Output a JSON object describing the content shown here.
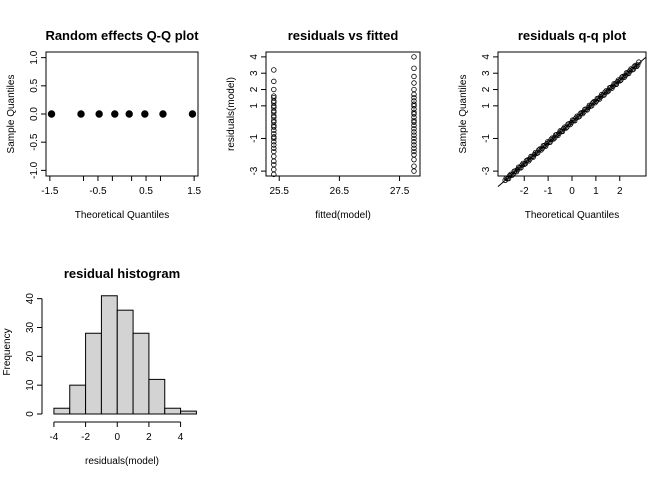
{
  "chart_data": [
    {
      "type": "scatter",
      "title": "Random effects Q-Q plot",
      "xlabel": "Theoretical Quantiles",
      "ylabel": "Sample Quantiles",
      "xlim": [
        -1.58,
        1.58
      ],
      "ylim": [
        -1.1,
        1.1
      ],
      "xticks": [
        -1.5,
        -0.5,
        0.5,
        1.5
      ],
      "xtick_labels": [
        "-1.5",
        "-0.5",
        "0.5",
        "1.5"
      ],
      "xticks_extra": [
        -0.8,
        -0.2,
        0.2,
        0.8
      ],
      "xtick_labels_extra": [
        "",
        "",
        "",
        ""
      ],
      "yticks": [
        -1.0,
        -0.5,
        0.0,
        0.5,
        1.0
      ],
      "ytick_labels": [
        "-1.0",
        "-0.5",
        "0.0",
        "0.5",
        "1.0"
      ],
      "x": [
        -1.465,
        -0.852,
        -0.475,
        -0.15,
        0.15,
        0.475,
        0.852,
        1.465
      ],
      "y": [
        0,
        0,
        0,
        0,
        0,
        0,
        0,
        0
      ],
      "marker": "filled",
      "grid": false
    },
    {
      "type": "scatter",
      "title": "residuals vs fitted",
      "xlabel": "fitted(model)",
      "ylabel": "residuals(model)",
      "xlim": [
        25.28,
        27.84
      ],
      "ylim": [
        -3.3,
        4.3
      ],
      "xticks": [
        25.5,
        26.5,
        27.5
      ],
      "xtick_labels": [
        "25.5",
        "26.5",
        "27.5"
      ],
      "yticks": [
        -3,
        -1,
        1,
        2,
        3,
        4
      ],
      "ytick_labels": [
        "-3",
        "-1",
        "1",
        "2",
        "3",
        "4"
      ],
      "groups": [
        {
          "x": 25.41,
          "y": [
            -3.2,
            -2.9,
            -2.6,
            -2.4,
            -2.1,
            -1.8,
            -1.6,
            -1.4,
            -1.2,
            -1.0,
            -0.9,
            -0.7,
            -0.5,
            -0.3,
            -0.2,
            0.0,
            0.1,
            0.3,
            0.4,
            0.6,
            0.7,
            0.9,
            1.0,
            1.2,
            1.3,
            1.5,
            1.6,
            2.0,
            2.5,
            3.2
          ]
        },
        {
          "x": 27.74,
          "y": [
            -3.0,
            -2.7,
            -2.3,
            -2.0,
            -1.8,
            -1.6,
            -1.4,
            -1.2,
            -1.0,
            -0.8,
            -0.6,
            -0.4,
            -0.2,
            0.0,
            0.1,
            0.3,
            0.5,
            0.6,
            0.8,
            1.0,
            1.1,
            1.3,
            1.5,
            1.7,
            2.0,
            2.4,
            2.8,
            3.3,
            4.0
          ]
        }
      ],
      "marker": "open",
      "grid": false
    },
    {
      "type": "scatter",
      "title": "residuals q-q plot",
      "xlabel": "Theoretical Quantiles",
      "ylabel": "Sample Quantiles",
      "xlim": [
        -3.1,
        3.1
      ],
      "ylim": [
        -3.3,
        4.3
      ],
      "xticks": [
        -2,
        -1,
        0,
        1,
        2
      ],
      "xtick_labels": [
        "-2",
        "-1",
        "0",
        "1",
        "2"
      ],
      "yticks": [
        -3,
        -1,
        1,
        2,
        3,
        4
      ],
      "ytick_labels": [
        "-3",
        "-1",
        "1",
        "2",
        "3",
        "4"
      ],
      "n_points": 120,
      "x_range": [
        -2.8,
        2.8
      ],
      "reference_line": {
        "intercept": 0.02,
        "slope": 1.28
      },
      "marker": "open",
      "grid": false
    },
    {
      "type": "bar",
      "title": "residual histogram",
      "xlabel": "residuals(model)",
      "ylabel": "Frequency",
      "bin_edges": [
        -4,
        -3,
        -2,
        -1,
        0,
        1,
        2,
        3,
        4,
        5
      ],
      "values": [
        2,
        10,
        28,
        41,
        36,
        28,
        12,
        2,
        1
      ],
      "xlim": [
        -4.5,
        5.1
      ],
      "ylim": [
        0,
        43
      ],
      "xticks": [
        -4,
        -2,
        0,
        2,
        4
      ],
      "xtick_labels": [
        "-4",
        "-2",
        "0",
        "2",
        "4"
      ],
      "yticks": [
        0,
        10,
        20,
        30,
        40
      ],
      "ytick_labels": [
        "0",
        "10",
        "20",
        "30",
        "40"
      ],
      "bar_fill": "#d3d3d3",
      "grid": false
    }
  ]
}
